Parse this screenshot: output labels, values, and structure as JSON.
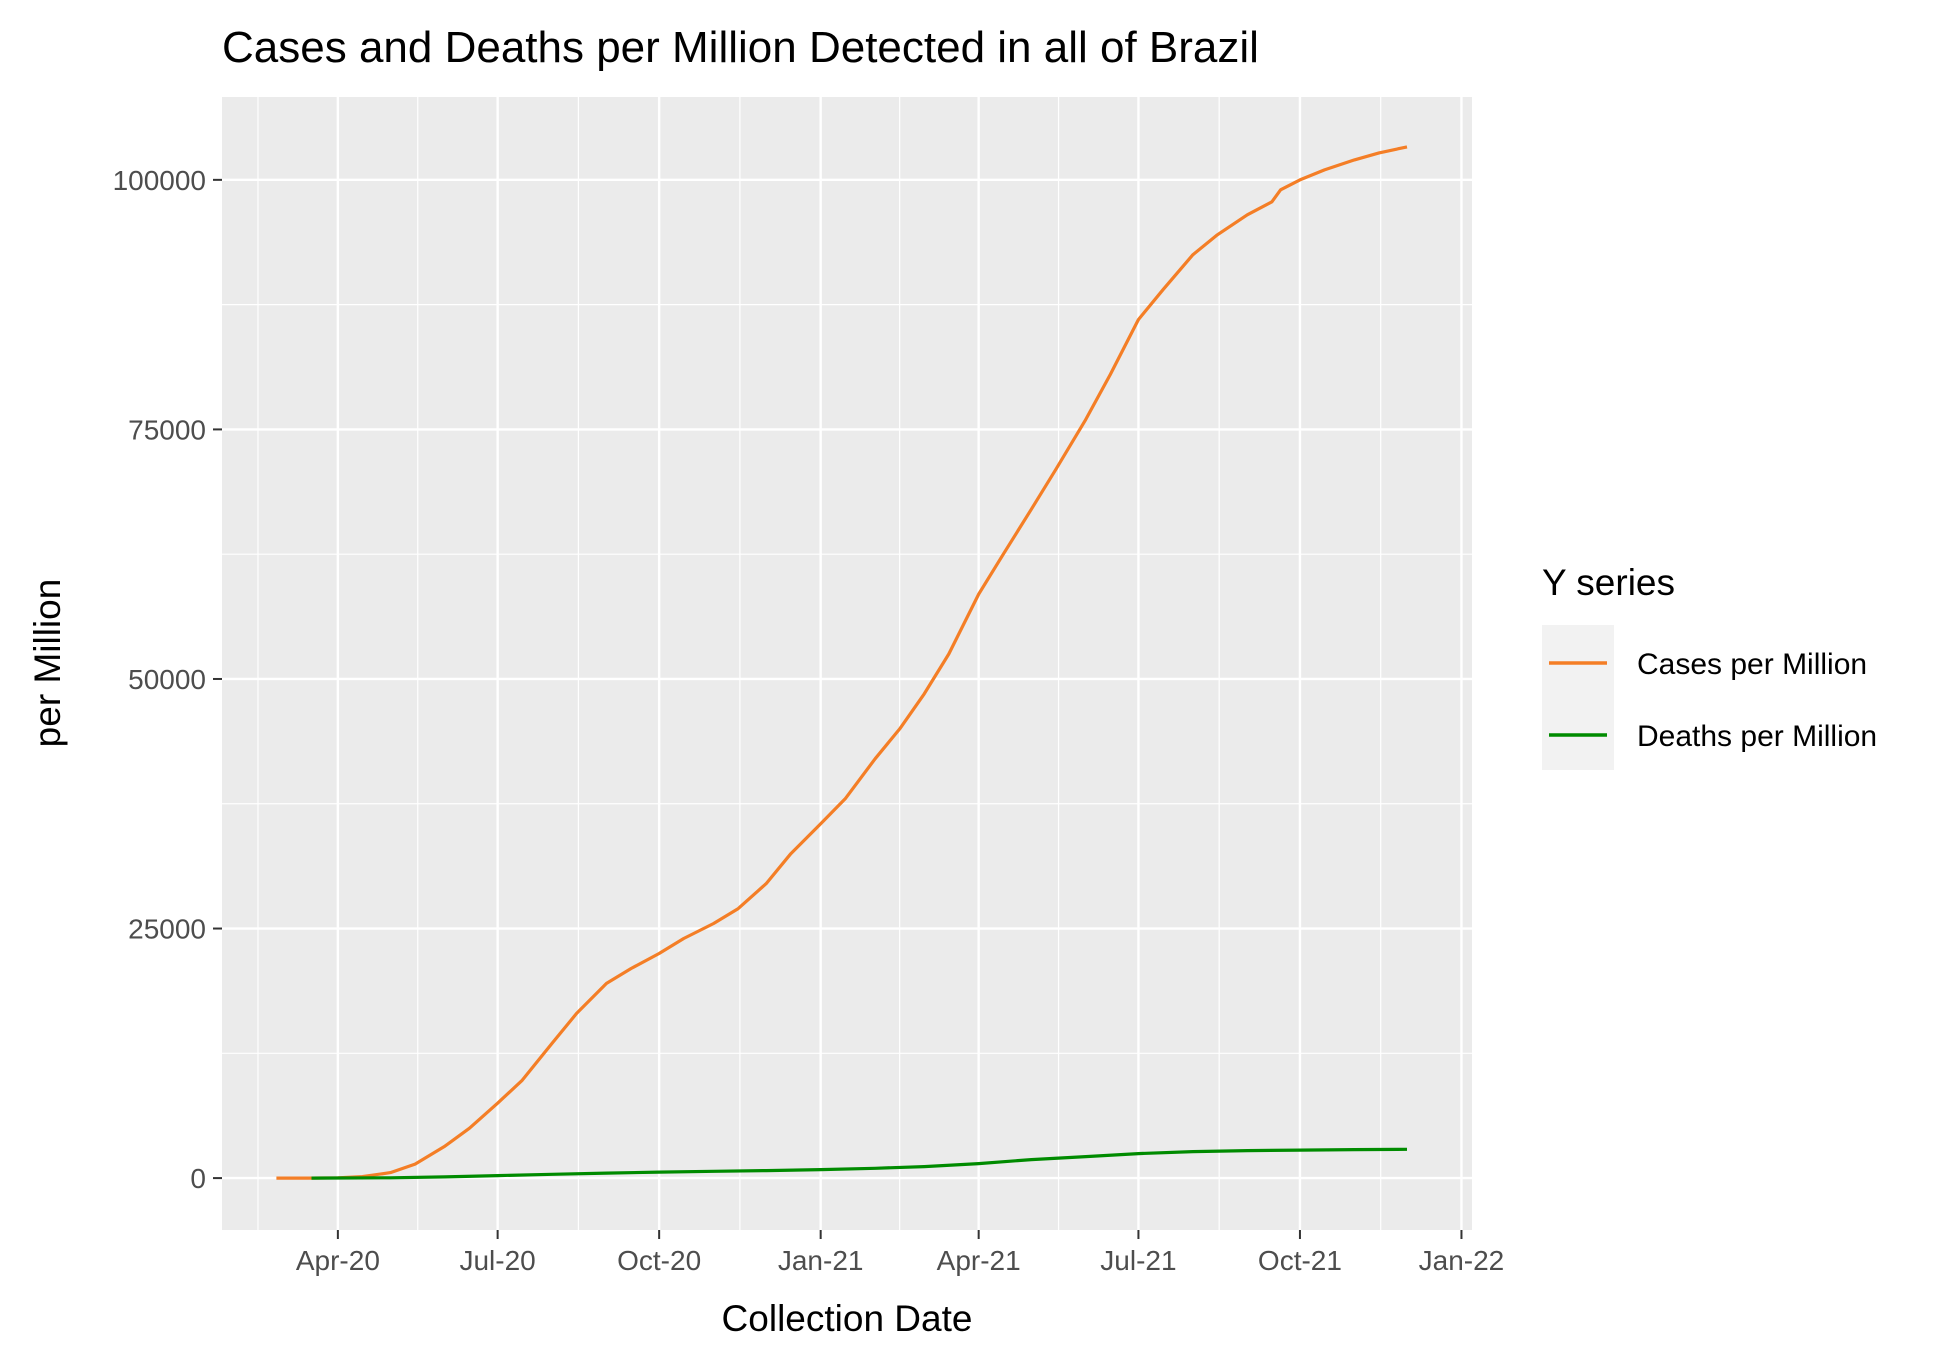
{
  "chart_data": {
    "type": "line",
    "title": "Cases and Deaths per Million Detected in all of Brazil",
    "xlabel": "Collection Date",
    "ylabel": "per Million",
    "x_ticks": [
      "2020-04-01",
      "2020-07-01",
      "2020-10-01",
      "2021-01-01",
      "2021-04-01",
      "2021-07-01",
      "2021-10-01",
      "2022-01-01"
    ],
    "x_tick_labels": [
      "Apr-20",
      "Jul-20",
      "Oct-20",
      "Jan-21",
      "Apr-21",
      "Jul-21",
      "Oct-21",
      "Jan-22"
    ],
    "xlim": [
      "2020-01-26",
      "2022-01-07"
    ],
    "y_ticks": [
      0,
      25000,
      50000,
      75000,
      100000
    ],
    "y_tick_labels": [
      "0",
      "25000",
      "50000",
      "75000",
      "100000"
    ],
    "ylim": [
      -5200,
      108300
    ],
    "grid": true,
    "legend": {
      "title": "Y series",
      "position": "right"
    },
    "series": [
      {
        "name": "Cases per Million",
        "color": "#F47E26",
        "x": [
          "2020-02-26",
          "2020-03-15",
          "2020-04-01",
          "2020-04-15",
          "2020-05-01",
          "2020-05-15",
          "2020-06-01",
          "2020-06-15",
          "2020-07-01",
          "2020-07-15",
          "2020-08-01",
          "2020-08-15",
          "2020-09-01",
          "2020-09-15",
          "2020-10-01",
          "2020-10-15",
          "2020-11-01",
          "2020-11-15",
          "2020-12-01",
          "2020-12-15",
          "2021-01-01",
          "2021-01-15",
          "2021-02-01",
          "2021-02-15",
          "2021-03-01",
          "2021-03-15",
          "2021-04-01",
          "2021-04-15",
          "2021-05-01",
          "2021-05-15",
          "2021-06-01",
          "2021-06-15",
          "2021-07-01",
          "2021-07-15",
          "2021-08-01",
          "2021-08-15",
          "2021-09-01",
          "2021-09-15",
          "2021-09-20",
          "2021-10-01",
          "2021-10-15",
          "2021-11-01",
          "2021-11-15",
          "2021-12-01"
        ],
        "y": [
          0,
          0,
          30,
          150,
          550,
          1400,
          3200,
          5000,
          7500,
          9800,
          13500,
          16500,
          19500,
          21000,
          22500,
          24000,
          25500,
          27000,
          29500,
          32500,
          35500,
          38000,
          42000,
          45000,
          48500,
          52500,
          58500,
          62500,
          67000,
          71000,
          76000,
          80500,
          86000,
          89000,
          92500,
          94500,
          96500,
          97800,
          99000,
          100000,
          101000,
          102000,
          102700,
          103300
        ]
      },
      {
        "name": "Deaths per Million",
        "color": "#008B00",
        "x": [
          "2020-03-17",
          "2020-04-01",
          "2020-05-01",
          "2020-06-01",
          "2020-07-01",
          "2020-08-01",
          "2020-09-01",
          "2020-10-01",
          "2020-11-01",
          "2020-12-01",
          "2021-01-01",
          "2021-02-01",
          "2021-03-01",
          "2021-04-01",
          "2021-05-01",
          "2021-06-01",
          "2021-07-01",
          "2021-08-01",
          "2021-09-01",
          "2021-10-01",
          "2021-11-01",
          "2021-12-01"
        ],
        "y": [
          0,
          5,
          30,
          120,
          250,
          380,
          500,
          600,
          680,
          750,
          850,
          980,
          1150,
          1450,
          1850,
          2150,
          2450,
          2650,
          2750,
          2800,
          2850,
          2880
        ]
      }
    ]
  }
}
